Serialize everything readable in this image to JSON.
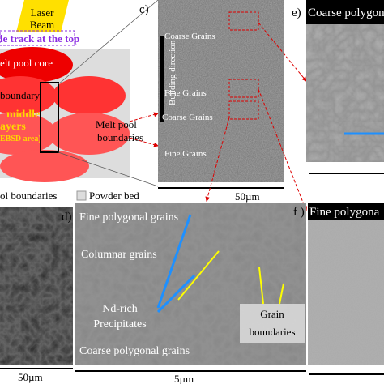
{
  "schematic": {
    "laser": "Laser",
    "beam": "Beam",
    "track": "le track at the top",
    "core": "elt pool core",
    "boundary": "boundary",
    "middle": "middle",
    "layers": "ayers",
    "ebsd": "EBSD area)",
    "melt_pool_boundaries": [
      "Melt pool",
      "boundaries"
    ],
    "legend": [
      "ol boundaries",
      "Powder bed"
    ]
  },
  "panel_c": {
    "label": "c)",
    "texts": [
      "Coarse Grains",
      "Fine Grains",
      "Coarse Grains",
      "Fine Grains"
    ],
    "axis": "Building direction",
    "scale": "50µm"
  },
  "panel_e": {
    "label": "e)",
    "title": "Coarse polygona"
  },
  "panel_d": {
    "label": "d)",
    "texts": [
      "Fine polygonal grains",
      "Columnar grains",
      "Nd-rich",
      "Precipitates",
      "Grain",
      "boundaries",
      "Coarse polygonal grains"
    ],
    "scale": "5µm"
  },
  "panel_f": {
    "label": "f )",
    "title": "Fine polygona"
  },
  "panel_left": {
    "scale": "50µm"
  }
}
